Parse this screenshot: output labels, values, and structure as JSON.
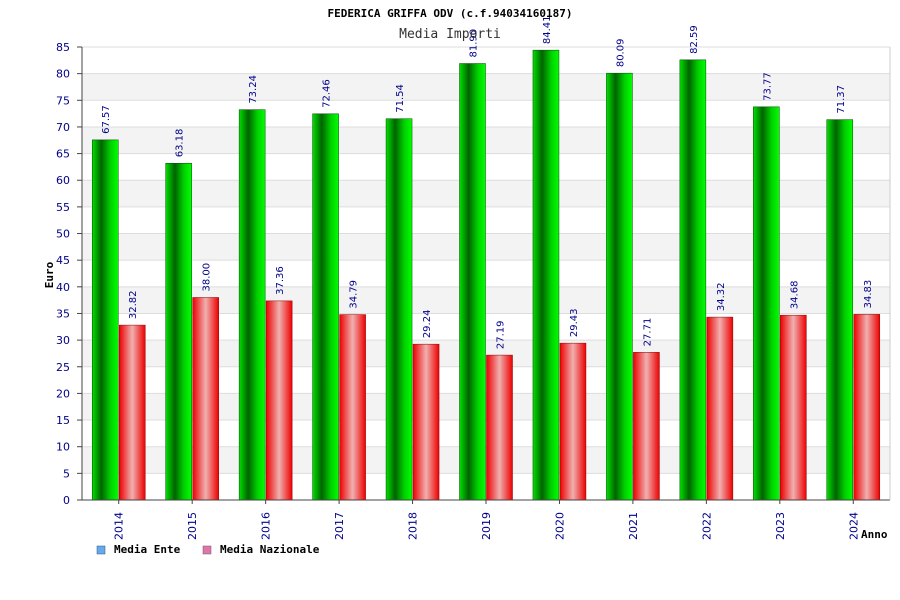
{
  "chart_data": {
    "type": "bar",
    "title": "FEDERICA GRIFFA ODV (c.f.94034160187)",
    "subtitle": "Media Importi",
    "xlabel": "Anno",
    "ylabel": "Euro",
    "ylim": [
      0,
      85
    ],
    "ytick_step": 5,
    "grid": true,
    "legend_position": "bottom-left",
    "categories": [
      "2014",
      "2015",
      "2016",
      "2017",
      "2018",
      "2019",
      "2020",
      "2021",
      "2022",
      "2023",
      "2024"
    ],
    "series": [
      {
        "name": "Media Ente",
        "values": [
          67.57,
          63.18,
          73.24,
          72.46,
          71.54,
          81.9,
          84.41,
          80.09,
          82.59,
          73.77,
          71.37
        ],
        "labels": [
          "67.57",
          "63.18",
          "73.24",
          "72.46",
          "71.54",
          "81.90",
          "84.41",
          "80.09",
          "82.59",
          "73.77",
          "71.37"
        ],
        "color": "#00c000",
        "legend_color": "#66aaee"
      },
      {
        "name": "Media Nazionale",
        "values": [
          32.82,
          38.0,
          37.36,
          34.79,
          29.24,
          27.19,
          29.43,
          27.71,
          34.32,
          34.68,
          34.83
        ],
        "labels": [
          "32.82",
          "38.00",
          "37.36",
          "34.79",
          "29.24",
          "27.19",
          "29.43",
          "27.71",
          "34.32",
          "34.68",
          "34.83"
        ],
        "color": "#ee1111",
        "legend_color": "#dd77aa"
      }
    ]
  }
}
